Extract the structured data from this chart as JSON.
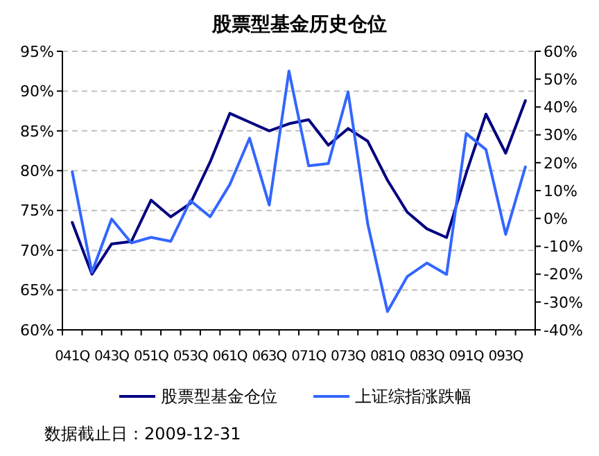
{
  "chart_data": {
    "type": "line",
    "title": "股票型基金历史仓位",
    "categories": [
      "041Q",
      null,
      "043Q",
      null,
      "051Q",
      null,
      "053Q",
      null,
      "061Q",
      null,
      "063Q",
      null,
      "071Q",
      null,
      "073Q",
      null,
      "081Q",
      null,
      "083Q",
      null,
      "091Q",
      null,
      "093Q",
      null
    ],
    "series": [
      {
        "name": "股票型基金仓位",
        "color": "#000080",
        "values": [
          73.5,
          67.0,
          70.8,
          71.1,
          76.3,
          74.2,
          75.9,
          81.1,
          87.2,
          86.1,
          85.0,
          85.9,
          86.4,
          83.2,
          85.3,
          83.7,
          78.8,
          74.8,
          72.7,
          71.6,
          79.7,
          87.1,
          82.2,
          88.8
        ]
      },
      {
        "name": "上证综指涨跌幅",
        "color": "#3366ff",
        "axis": "y2",
        "values": [
          16.7,
          -19.3,
          -0.2,
          -8.8,
          -6.8,
          -8.2,
          6.4,
          0.6,
          12.2,
          28.8,
          4.8,
          52.9,
          18.9,
          19.7,
          45.4,
          -2,
          -33.4,
          -20.9,
          -16.0,
          -20.1,
          30.5,
          24.7,
          -5.7,
          18.5
        ]
      }
    ],
    "ylim": [
      60,
      95
    ],
    "yticks": [
      {
        "value": 60,
        "label": "60%"
      },
      {
        "value": 65,
        "label": "65%"
      },
      {
        "value": 70,
        "label": "70%"
      },
      {
        "value": 75,
        "label": "75%"
      },
      {
        "value": 80,
        "label": "80%"
      },
      {
        "value": 85,
        "label": "85%"
      },
      {
        "value": 90,
        "label": "90%"
      },
      {
        "value": 95,
        "label": "95%"
      }
    ],
    "y2lim": [
      -40,
      60
    ],
    "y2ticks": [
      {
        "value": -40,
        "label": "-40%"
      },
      {
        "value": -30,
        "label": "-30%"
      },
      {
        "value": -20,
        "label": "-20%"
      },
      {
        "value": -10,
        "label": "-10%"
      },
      {
        "value": 0,
        "label": "0%"
      },
      {
        "value": 10,
        "label": "10%"
      },
      {
        "value": 20,
        "label": "20%"
      },
      {
        "value": 30,
        "label": "30%"
      },
      {
        "value": 40,
        "label": "40%"
      },
      {
        "value": 50,
        "label": "50%"
      },
      {
        "value": 60,
        "label": "60%"
      }
    ],
    "grid": "y",
    "legend": "bottom",
    "marker": "none",
    "line_style": "solid",
    "annotations": [
      "数据截止日：2009-12-31"
    ]
  }
}
